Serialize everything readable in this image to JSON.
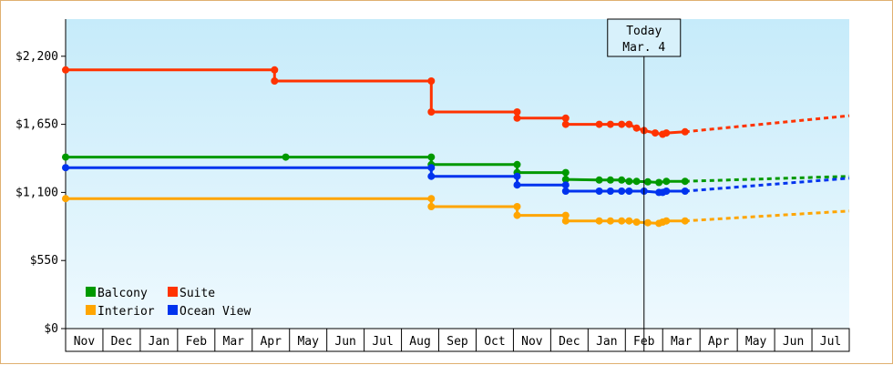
{
  "chart_data": {
    "type": "line",
    "title": "",
    "xlabel": "",
    "ylabel": "",
    "ylim": [
      0,
      2500
    ],
    "y_ticks": [
      0,
      550,
      1100,
      1650,
      2200
    ],
    "y_tick_labels": [
      "$0",
      "$550",
      "$1,100",
      "$1,650",
      "$2,200"
    ],
    "x_ticks": [
      "Nov",
      "Dec",
      "Jan",
      "Feb",
      "Mar",
      "Apr",
      "May",
      "Jun",
      "Jul",
      "Aug",
      "Sep",
      "Oct",
      "Nov",
      "Dec",
      "Jan",
      "Feb",
      "Mar",
      "Apr",
      "May",
      "Jun",
      "Jul"
    ],
    "grid": false,
    "legend_position": "bottom-left",
    "today_marker": {
      "x": 15.5,
      "line1": "Today",
      "line2": "Mar. 4"
    },
    "series": [
      {
        "name": "Suite",
        "color": "#ff3300",
        "points": [
          [
            0,
            2090
          ],
          [
            5.6,
            2090
          ],
          [
            5.6,
            2000
          ],
          [
            9.8,
            2000
          ],
          [
            9.8,
            1750
          ],
          [
            12.1,
            1750
          ],
          [
            12.1,
            1700
          ],
          [
            13.4,
            1700
          ],
          [
            13.4,
            1650
          ],
          [
            14.3,
            1650
          ],
          [
            14.6,
            1650
          ],
          [
            14.9,
            1650
          ],
          [
            15.1,
            1650
          ],
          [
            15.3,
            1620
          ],
          [
            15.5,
            1600
          ],
          [
            15.8,
            1580
          ],
          [
            16.0,
            1570
          ],
          [
            16.1,
            1580
          ],
          [
            16.6,
            1590
          ]
        ],
        "markers": [
          [
            0,
            2090
          ],
          [
            5.6,
            2090
          ],
          [
            5.6,
            2000
          ],
          [
            9.8,
            2000
          ],
          [
            9.8,
            1750
          ],
          [
            12.1,
            1750
          ],
          [
            12.1,
            1700
          ],
          [
            13.4,
            1700
          ],
          [
            13.4,
            1650
          ],
          [
            14.3,
            1650
          ],
          [
            14.6,
            1650
          ],
          [
            14.9,
            1650
          ],
          [
            15.1,
            1650
          ],
          [
            15.3,
            1620
          ],
          [
            15.5,
            1600
          ],
          [
            15.8,
            1580
          ],
          [
            16.0,
            1570
          ],
          [
            16.1,
            1580
          ],
          [
            16.6,
            1590
          ]
        ],
        "projection": [
          [
            16.6,
            1590
          ],
          [
            21,
            1720
          ]
        ]
      },
      {
        "name": "Balcony",
        "color": "#009900",
        "points": [
          [
            0,
            1385
          ],
          [
            5.9,
            1385
          ],
          [
            9.8,
            1385
          ],
          [
            9.8,
            1325
          ],
          [
            12.1,
            1325
          ],
          [
            12.1,
            1260
          ],
          [
            13.4,
            1260
          ],
          [
            13.4,
            1205
          ],
          [
            14.3,
            1200
          ],
          [
            14.6,
            1200
          ],
          [
            14.9,
            1200
          ],
          [
            15.1,
            1190
          ],
          [
            15.3,
            1190
          ],
          [
            15.6,
            1185
          ],
          [
            15.9,
            1180
          ],
          [
            16.1,
            1190
          ],
          [
            16.6,
            1190
          ]
        ],
        "markers": [
          [
            0,
            1385
          ],
          [
            5.9,
            1385
          ],
          [
            9.8,
            1385
          ],
          [
            9.8,
            1325
          ],
          [
            12.1,
            1325
          ],
          [
            12.1,
            1260
          ],
          [
            13.4,
            1260
          ],
          [
            13.4,
            1205
          ],
          [
            14.3,
            1200
          ],
          [
            14.6,
            1200
          ],
          [
            14.9,
            1200
          ],
          [
            15.1,
            1190
          ],
          [
            15.3,
            1190
          ],
          [
            15.6,
            1185
          ],
          [
            15.9,
            1180
          ],
          [
            16.1,
            1190
          ],
          [
            16.6,
            1190
          ]
        ],
        "projection": [
          [
            16.6,
            1190
          ],
          [
            21,
            1230
          ]
        ]
      },
      {
        "name": "Ocean View",
        "color": "#0033ee",
        "points": [
          [
            0,
            1300
          ],
          [
            9.8,
            1300
          ],
          [
            9.8,
            1230
          ],
          [
            12.1,
            1230
          ],
          [
            12.1,
            1160
          ],
          [
            13.4,
            1160
          ],
          [
            13.4,
            1110
          ],
          [
            14.3,
            1110
          ],
          [
            14.6,
            1110
          ],
          [
            14.9,
            1110
          ],
          [
            15.1,
            1110
          ],
          [
            15.5,
            1110
          ],
          [
            15.9,
            1100
          ],
          [
            16.0,
            1100
          ],
          [
            16.1,
            1110
          ],
          [
            16.6,
            1110
          ]
        ],
        "markers": [
          [
            0,
            1300
          ],
          [
            9.8,
            1300
          ],
          [
            9.8,
            1230
          ],
          [
            12.1,
            1230
          ],
          [
            12.1,
            1160
          ],
          [
            13.4,
            1160
          ],
          [
            13.4,
            1110
          ],
          [
            14.3,
            1110
          ],
          [
            14.6,
            1110
          ],
          [
            14.9,
            1110
          ],
          [
            15.1,
            1110
          ],
          [
            15.5,
            1110
          ],
          [
            15.9,
            1100
          ],
          [
            16.0,
            1100
          ],
          [
            16.1,
            1110
          ],
          [
            16.6,
            1110
          ]
        ],
        "projection": [
          [
            16.6,
            1110
          ],
          [
            21,
            1215
          ]
        ]
      },
      {
        "name": "Interior",
        "color": "#ffa500",
        "points": [
          [
            0,
            1050
          ],
          [
            9.8,
            1050
          ],
          [
            9.8,
            985
          ],
          [
            12.1,
            985
          ],
          [
            12.1,
            915
          ],
          [
            13.4,
            915
          ],
          [
            13.4,
            870
          ],
          [
            14.3,
            870
          ],
          [
            14.6,
            870
          ],
          [
            14.9,
            870
          ],
          [
            15.1,
            870
          ],
          [
            15.3,
            860
          ],
          [
            15.6,
            855
          ],
          [
            15.9,
            850
          ],
          [
            16.0,
            860
          ],
          [
            16.1,
            870
          ],
          [
            16.6,
            870
          ]
        ],
        "markers": [
          [
            0,
            1050
          ],
          [
            9.8,
            1050
          ],
          [
            9.8,
            985
          ],
          [
            12.1,
            985
          ],
          [
            12.1,
            915
          ],
          [
            13.4,
            915
          ],
          [
            13.4,
            870
          ],
          [
            14.3,
            870
          ],
          [
            14.6,
            870
          ],
          [
            14.9,
            870
          ],
          [
            15.1,
            870
          ],
          [
            15.3,
            860
          ],
          [
            15.6,
            855
          ],
          [
            15.9,
            850
          ],
          [
            16.0,
            860
          ],
          [
            16.1,
            870
          ],
          [
            16.6,
            870
          ]
        ],
        "projection": [
          [
            16.6,
            870
          ],
          [
            21,
            950
          ]
        ]
      }
    ],
    "legend": [
      {
        "name": "Balcony",
        "color": "#009900"
      },
      {
        "name": "Suite",
        "color": "#ff3300"
      },
      {
        "name": "Interior",
        "color": "#ffa500"
      },
      {
        "name": "Ocean View",
        "color": "#0033ee"
      }
    ]
  }
}
